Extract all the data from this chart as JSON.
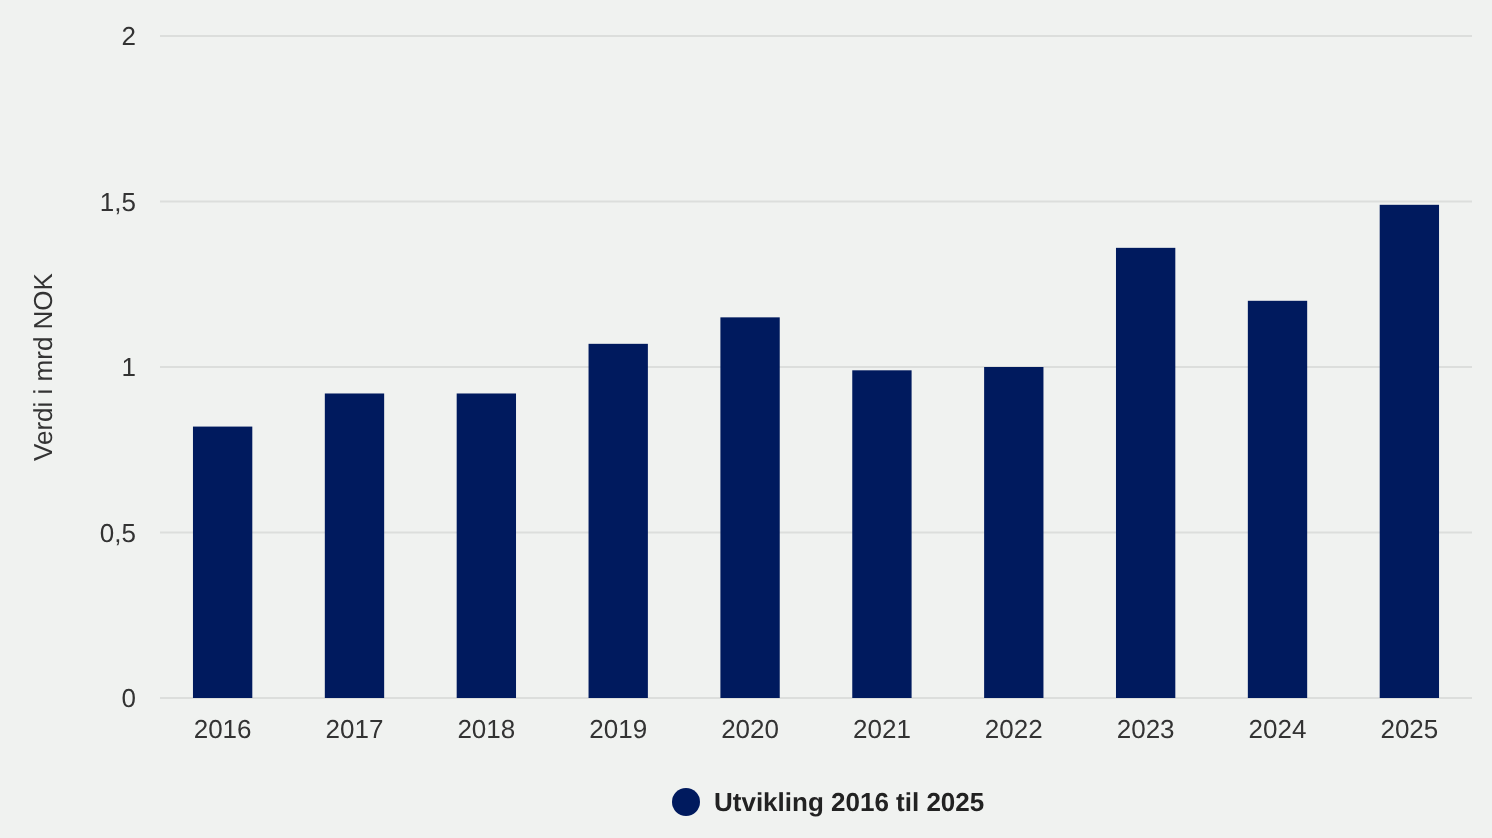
{
  "chart_data": {
    "type": "bar",
    "ylabel": "Verdi i mrd NOK",
    "categories": [
      "2016",
      "2017",
      "2018",
      "2019",
      "2020",
      "2021",
      "2022",
      "2023",
      "2024",
      "2025"
    ],
    "series": [
      {
        "name": "Utvikling 2016 til 2025",
        "color": "#001a5e",
        "values": [
          0.82,
          0.92,
          0.92,
          1.07,
          1.15,
          0.99,
          1.0,
          1.36,
          1.2,
          1.49
        ]
      }
    ],
    "ylim": [
      0,
      2
    ],
    "yticks": [
      0,
      {
        "value": 0.5,
        "label": "0,5"
      },
      1,
      {
        "value": 1.5,
        "label": "1,5"
      },
      2
    ],
    "grid": "y",
    "legend": "bottom"
  }
}
